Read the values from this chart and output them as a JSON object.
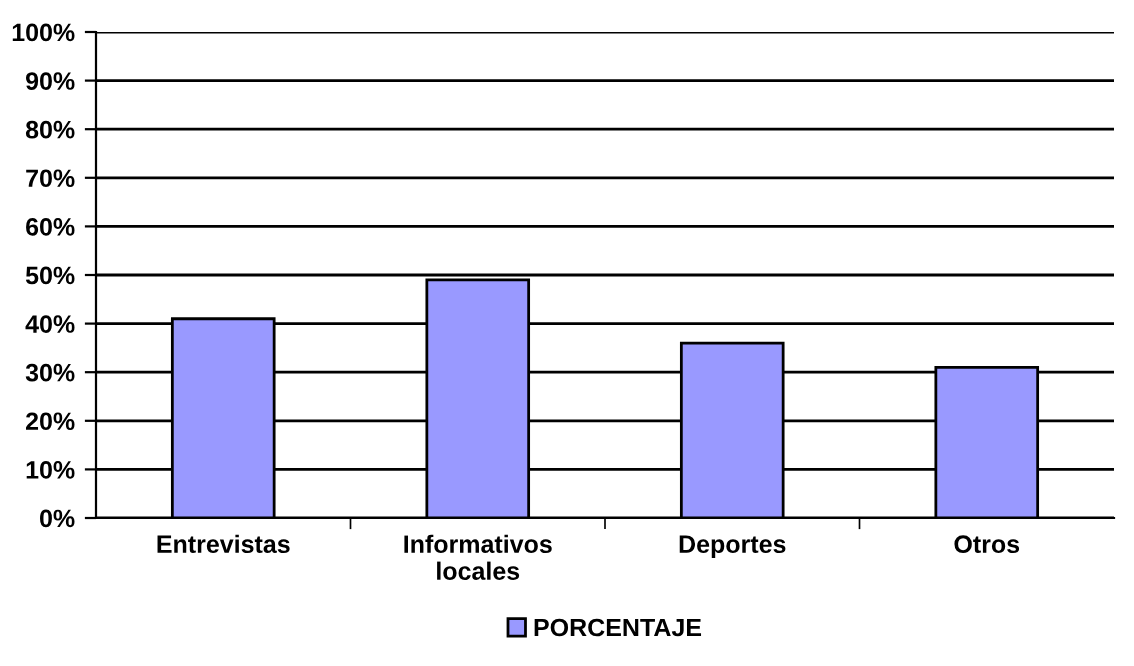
{
  "chart_data": {
    "type": "bar",
    "categories": [
      "Entrevistas",
      "Informativos\nlocales",
      "Deportes",
      "Otros"
    ],
    "series": [
      {
        "name": "PORCENTAJE",
        "color": "#9999ff",
        "values": [
          41,
          49,
          36,
          31
        ]
      }
    ],
    "ylim": [
      0,
      100
    ],
    "yticks": [
      {
        "value": 0,
        "label": "0%"
      },
      {
        "value": 10,
        "label": "10%"
      },
      {
        "value": 20,
        "label": "20%"
      },
      {
        "value": 30,
        "label": "30%"
      },
      {
        "value": 40,
        "label": "40%"
      },
      {
        "value": 50,
        "label": "50%"
      },
      {
        "value": 60,
        "label": "60%"
      },
      {
        "value": 70,
        "label": "70%"
      },
      {
        "value": 80,
        "label": "80%"
      },
      {
        "value": 90,
        "label": "90%"
      },
      {
        "value": 100,
        "label": "100%"
      }
    ],
    "grid": "y",
    "legend": "bottom"
  }
}
